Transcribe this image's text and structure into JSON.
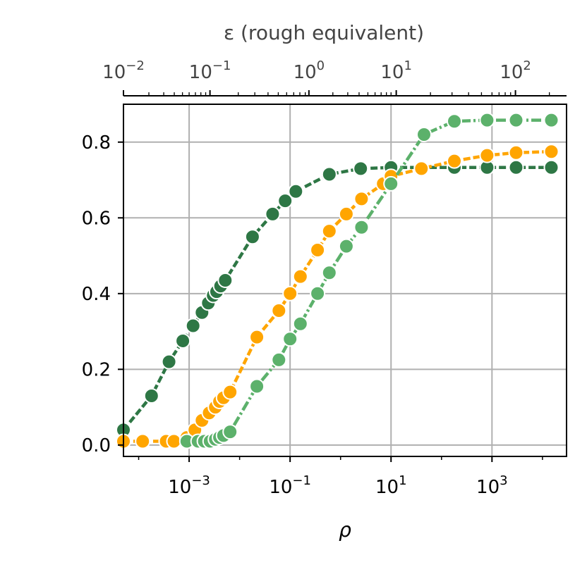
{
  "chart_data": {
    "type": "line",
    "xlabel": "ρ",
    "x2label": "ε (rough equivalent)",
    "ylabel": "",
    "x_scale": "log",
    "x2_scale": "log",
    "xlim": [
      5e-05,
      30000
    ],
    "ylim": [
      -0.03,
      0.9
    ],
    "grid": true,
    "x_ticks": [
      {
        "base": "10",
        "exp": "−3",
        "value": 0.001
      },
      {
        "base": "10",
        "exp": "−1",
        "value": 0.1
      },
      {
        "base": "10",
        "exp": "1",
        "value": 10
      },
      {
        "base": "10",
        "exp": "3",
        "value": 1000
      }
    ],
    "x2_ticks": [
      {
        "base": "10",
        "exp": "−2",
        "value": 0.01
      },
      {
        "base": "10",
        "exp": "−1",
        "value": 0.1
      },
      {
        "base": "10",
        "exp": "0",
        "value": 1
      },
      {
        "base": "10",
        "exp": "1",
        "value": 10
      },
      {
        "base": "10",
        "exp": "2",
        "value": 100
      }
    ],
    "x2_at_rho": [
      [
        5e-05,
        0.01
      ],
      [
        0.001,
        0.06
      ],
      [
        0.02,
        0.3
      ],
      [
        0.2,
        0.9
      ],
      [
        1,
        2.5
      ],
      [
        10,
        9
      ],
      [
        100,
        25
      ],
      [
        1000,
        60
      ],
      [
        10000,
        180
      ],
      [
        30000,
        260
      ]
    ],
    "y_ticks": [
      {
        "label": "0.0",
        "value": 0.0
      },
      {
        "label": "0.2",
        "value": 0.2
      },
      {
        "label": "0.4",
        "value": 0.4
      },
      {
        "label": "0.6",
        "value": 0.6
      },
      {
        "label": "0.8",
        "value": 0.8
      }
    ],
    "series": [
      {
        "color": "#2e7745",
        "dash": "10,4",
        "points": [
          [
            5e-05,
            0.04
          ],
          [
            0.00018,
            0.13
          ],
          [
            0.0004,
            0.22
          ],
          [
            0.00075,
            0.275
          ],
          [
            0.0012,
            0.315
          ],
          [
            0.0018,
            0.35
          ],
          [
            0.0024,
            0.375
          ],
          [
            0.003,
            0.395
          ],
          [
            0.0035,
            0.405
          ],
          [
            0.0042,
            0.42
          ],
          [
            0.0052,
            0.435
          ],
          [
            0.018,
            0.55
          ],
          [
            0.045,
            0.61
          ],
          [
            0.08,
            0.645
          ],
          [
            0.13,
            0.67
          ],
          [
            0.6,
            0.715
          ],
          [
            2.5,
            0.73
          ],
          [
            10,
            0.733
          ],
          [
            40,
            0.733
          ],
          [
            180,
            0.733
          ],
          [
            800,
            0.733
          ],
          [
            3000,
            0.733
          ],
          [
            15000,
            0.733
          ]
        ]
      },
      {
        "color": "#ffa500",
        "dash": "10,4",
        "points": [
          [
            5e-05,
            0.01
          ],
          [
            0.00012,
            0.01
          ],
          [
            0.00035,
            0.01
          ],
          [
            0.0005,
            0.01
          ],
          [
            0.0009,
            0.02
          ],
          [
            0.0013,
            0.04
          ],
          [
            0.0018,
            0.065
          ],
          [
            0.0025,
            0.085
          ],
          [
            0.0033,
            0.1
          ],
          [
            0.004,
            0.115
          ],
          [
            0.0048,
            0.125
          ],
          [
            0.0065,
            0.14
          ],
          [
            0.022,
            0.285
          ],
          [
            0.06,
            0.355
          ],
          [
            0.1,
            0.4
          ],
          [
            0.16,
            0.445
          ],
          [
            0.35,
            0.515
          ],
          [
            0.6,
            0.565
          ],
          [
            1.3,
            0.61
          ],
          [
            2.6,
            0.65
          ],
          [
            7,
            0.69
          ],
          [
            10,
            0.71
          ],
          [
            40,
            0.73
          ],
          [
            180,
            0.75
          ],
          [
            800,
            0.765
          ],
          [
            3000,
            0.772
          ],
          [
            15000,
            0.775
          ]
        ]
      },
      {
        "color": "#5cb16b",
        "dash": "14,4,3,4",
        "points": [
          [
            0.0009,
            0.01
          ],
          [
            0.0015,
            0.01
          ],
          [
            0.002,
            0.01
          ],
          [
            0.0026,
            0.01
          ],
          [
            0.0033,
            0.015
          ],
          [
            0.004,
            0.02
          ],
          [
            0.0048,
            0.025
          ],
          [
            0.0065,
            0.035
          ],
          [
            0.022,
            0.155
          ],
          [
            0.06,
            0.225
          ],
          [
            0.1,
            0.28
          ],
          [
            0.16,
            0.32
          ],
          [
            0.35,
            0.4
          ],
          [
            0.6,
            0.455
          ],
          [
            1.3,
            0.525
          ],
          [
            2.6,
            0.575
          ],
          [
            10,
            0.69
          ],
          [
            45,
            0.82
          ],
          [
            180,
            0.855
          ],
          [
            800,
            0.858
          ],
          [
            3000,
            0.858
          ],
          [
            15000,
            0.858
          ]
        ]
      }
    ]
  }
}
